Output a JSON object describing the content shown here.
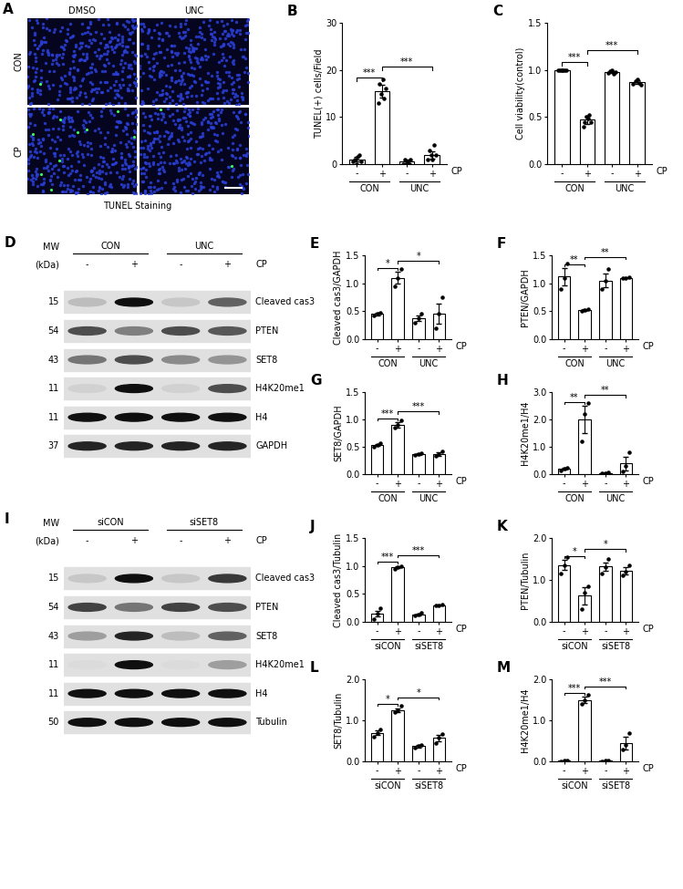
{
  "chart_data": [
    {
      "panel": "B",
      "type": "bar",
      "y_label": "TUNEL(+) cells/Field",
      "categories": [
        "-",
        "+",
        "-",
        "+"
      ],
      "groups": [
        "CON",
        "UNC"
      ],
      "group_axis_label": "CP",
      "color": "#ffffff",
      "values": [
        1,
        15.5,
        0.5,
        2
      ],
      "errors": [
        0.5,
        1.3,
        0.4,
        0.8
      ],
      "points": [
        [
          0.5,
          1,
          0,
          1.5,
          2,
          0.5
        ],
        [
          13,
          17,
          15,
          18,
          14,
          16
        ],
        [
          0,
          1,
          0,
          0.5,
          0,
          1
        ],
        [
          1,
          3,
          2,
          1,
          4,
          2
        ]
      ],
      "significance": [
        {
          "bars": [
            0,
            1
          ],
          "label": "***"
        },
        {
          "bars": [
            1,
            3
          ],
          "label": "***"
        }
      ],
      "ylim": [
        0,
        30
      ],
      "yticks": [
        0,
        10,
        20,
        30
      ]
    },
    {
      "panel": "C",
      "type": "bar",
      "y_label": "Cell viability(control)",
      "categories": [
        "-",
        "+",
        "-",
        "+"
      ],
      "groups": [
        "CON",
        "UNC"
      ],
      "group_axis_label": "CP",
      "color": "#ffffff",
      "values": [
        1.0,
        0.47,
        0.98,
        0.87
      ],
      "errors": [
        0.01,
        0.04,
        0.01,
        0.02
      ],
      "points": [
        [
          1,
          1,
          1,
          1,
          1,
          1
        ],
        [
          0.4,
          0.45,
          0.5,
          0.48,
          0.52,
          0.45
        ],
        [
          0.97,
          0.99,
          1.0,
          0.96,
          0.98
        ],
        [
          0.85,
          0.88,
          0.9,
          0.86,
          0.84
        ]
      ],
      "significance": [
        {
          "bars": [
            0,
            1
          ],
          "label": "***"
        },
        {
          "bars": [
            1,
            3
          ],
          "label": "***"
        }
      ],
      "ylim": [
        0,
        1.5
      ],
      "yticks": [
        {
          "value": 0,
          "label": "0.0"
        },
        {
          "value": 0.5,
          "label": "0.5"
        },
        {
          "value": 1,
          "label": "1.0"
        },
        {
          "value": 1.5,
          "label": "1.5"
        }
      ]
    },
    {
      "panel": "E",
      "type": "bar",
      "y_label": "Cleaved cas3/GAPDH",
      "categories": [
        "-",
        "+",
        "-",
        "+"
      ],
      "groups": [
        "CON",
        "UNC"
      ],
      "group_axis_label": "CP",
      "color": "#ffffff",
      "values": [
        0.45,
        1.1,
        0.38,
        0.45
      ],
      "errors": [
        0.03,
        0.1,
        0.05,
        0.18
      ],
      "points": [
        [
          0.42,
          0.45,
          0.48
        ],
        [
          0.95,
          1.1,
          1.25
        ],
        [
          0.3,
          0.38,
          0.45
        ],
        [
          0.2,
          0.45,
          0.75
        ]
      ],
      "significance": [
        {
          "bars": [
            0,
            1
          ],
          "label": "*"
        },
        {
          "bars": [
            1,
            3
          ],
          "label": "*"
        }
      ],
      "ylim": [
        0,
        1.5
      ],
      "yticks": [
        {
          "value": 0,
          "label": "0.0"
        },
        {
          "value": 0.5,
          "label": "0.5"
        },
        {
          "value": 1,
          "label": "1.0"
        },
        {
          "value": 1.5,
          "label": "1.5"
        }
      ]
    },
    {
      "panel": "F",
      "type": "bar",
      "y_label": "PTEN/GAPDH",
      "categories": [
        "-",
        "+",
        "-",
        "+"
      ],
      "groups": [
        "CON",
        "UNC"
      ],
      "group_axis_label": "CP",
      "color": "#ffffff",
      "values": [
        1.12,
        0.52,
        1.05,
        1.1
      ],
      "errors": [
        0.15,
        0.02,
        0.12,
        0.01
      ],
      "points": [
        [
          0.9,
          1.1,
          1.35
        ],
        [
          0.5,
          0.52,
          0.54
        ],
        [
          0.9,
          1.05,
          1.25
        ],
        [
          1.1,
          1.1,
          1.11
        ]
      ],
      "significance": [
        {
          "bars": [
            0,
            1
          ],
          "label": "**"
        },
        {
          "bars": [
            1,
            3
          ],
          "label": "**"
        }
      ],
      "ylim": [
        0,
        1.5
      ],
      "yticks": [
        {
          "value": 0,
          "label": "0.0"
        },
        {
          "value": 0.5,
          "label": "0.5"
        },
        {
          "value": 1,
          "label": "1.0"
        },
        {
          "value": 1.5,
          "label": "1.5"
        }
      ]
    },
    {
      "panel": "G",
      "type": "bar",
      "y_label": "SET8/GAPDH",
      "categories": [
        "-",
        "+",
        "-",
        "+"
      ],
      "groups": [
        "CON",
        "UNC"
      ],
      "group_axis_label": "CP",
      "color": "#ffffff",
      "values": [
        0.53,
        0.9,
        0.37,
        0.37
      ],
      "errors": [
        0.02,
        0.05,
        0.02,
        0.03
      ],
      "points": [
        [
          0.5,
          0.53,
          0.56
        ],
        [
          0.85,
          0.9,
          0.98
        ],
        [
          0.35,
          0.37,
          0.39
        ],
        [
          0.33,
          0.37,
          0.41
        ]
      ],
      "significance": [
        {
          "bars": [
            0,
            1
          ],
          "label": "***"
        },
        {
          "bars": [
            1,
            3
          ],
          "label": "***"
        }
      ],
      "ylim": [
        0,
        1.5
      ],
      "yticks": [
        {
          "value": 0,
          "label": "0.0"
        },
        {
          "value": 0.5,
          "label": "0.5"
        },
        {
          "value": 1,
          "label": "1.0"
        },
        {
          "value": 1.5,
          "label": "1.5"
        }
      ]
    },
    {
      "panel": "H",
      "type": "bar",
      "y_label": "H4K20me1/H4",
      "categories": [
        "-",
        "+",
        "-",
        "+"
      ],
      "groups": [
        "CON",
        "UNC"
      ],
      "group_axis_label": "CP",
      "color": "#ffffff",
      "values": [
        0.2,
        2.0,
        0.05,
        0.4
      ],
      "errors": [
        0.03,
        0.5,
        0.03,
        0.25
      ],
      "points": [
        [
          0.15,
          0.2,
          0.22
        ],
        [
          1.2,
          2.2,
          2.6
        ],
        [
          0.02,
          0.05,
          0.08
        ],
        [
          0.1,
          0.3,
          0.8
        ]
      ],
      "significance": [
        {
          "bars": [
            0,
            1
          ],
          "label": "**"
        },
        {
          "bars": [
            1,
            3
          ],
          "label": "**"
        }
      ],
      "ylim": [
        0,
        3
      ],
      "yticks": [
        {
          "value": 0,
          "label": "0.0"
        },
        {
          "value": 1,
          "label": "1.0"
        },
        {
          "value": 2,
          "label": "2.0"
        },
        {
          "value": 3,
          "label": "3.0"
        }
      ]
    },
    {
      "panel": "J",
      "type": "bar",
      "y_label": "Cleaved cas3/Tubulin",
      "categories": [
        "-",
        "+",
        "-",
        "+"
      ],
      "groups": [
        "siCON",
        "siSET8"
      ],
      "group_axis_label": "CP",
      "color": "#ffffff",
      "values": [
        0.15,
        0.98,
        0.13,
        0.3
      ],
      "errors": [
        0.05,
        0.02,
        0.02,
        0.01
      ],
      "points": [
        [
          0.05,
          0.15,
          0.25
        ],
        [
          0.95,
          0.98,
          1.0
        ],
        [
          0.11,
          0.13,
          0.16
        ],
        [
          0.29,
          0.3,
          0.31
        ]
      ],
      "significance": [
        {
          "bars": [
            0,
            1
          ],
          "label": "***"
        },
        {
          "bars": [
            1,
            3
          ],
          "label": "***"
        }
      ],
      "ylim": [
        0,
        1.5
      ],
      "yticks": [
        {
          "value": 0,
          "label": "0.0"
        },
        {
          "value": 0.5,
          "label": "0.5"
        },
        {
          "value": 1,
          "label": "1.0"
        },
        {
          "value": 1.5,
          "label": "1.5"
        }
      ]
    },
    {
      "panel": "K",
      "type": "bar",
      "y_label": "PTEN/Tubulin",
      "categories": [
        "-",
        "+",
        "-",
        "+"
      ],
      "groups": [
        "siCON",
        "siSET8"
      ],
      "group_axis_label": "CP",
      "color": "#ffffff",
      "values": [
        1.35,
        0.62,
        1.32,
        1.22
      ],
      "errors": [
        0.12,
        0.2,
        0.1,
        0.08
      ],
      "points": [
        [
          1.15,
          1.35,
          1.55
        ],
        [
          0.3,
          0.7,
          0.85
        ],
        [
          1.15,
          1.3,
          1.5
        ],
        [
          1.1,
          1.2,
          1.35
        ]
      ],
      "significance": [
        {
          "bars": [
            0,
            1
          ],
          "label": "*"
        },
        {
          "bars": [
            1,
            3
          ],
          "label": "*"
        }
      ],
      "ylim": [
        0,
        2
      ],
      "yticks": [
        {
          "value": 0,
          "label": "0.0"
        },
        {
          "value": 1,
          "label": "1.0"
        },
        {
          "value": 2,
          "label": "2.0"
        }
      ]
    },
    {
      "panel": "L",
      "type": "bar",
      "y_label": "SET8/Tubulin",
      "categories": [
        "-",
        "+",
        "-",
        "+"
      ],
      "groups": [
        "siCON",
        "siSET8"
      ],
      "group_axis_label": "CP",
      "color": "#ffffff",
      "values": [
        0.7,
        1.25,
        0.37,
        0.57
      ],
      "errors": [
        0.05,
        0.05,
        0.03,
        0.07
      ],
      "points": [
        [
          0.6,
          0.7,
          0.78
        ],
        [
          1.2,
          1.25,
          1.35
        ],
        [
          0.33,
          0.37,
          0.41
        ],
        [
          0.45,
          0.58,
          0.67
        ]
      ],
      "significance": [
        {
          "bars": [
            0,
            1
          ],
          "label": "*"
        },
        {
          "bars": [
            1,
            3
          ],
          "label": "*"
        }
      ],
      "ylim": [
        0,
        2
      ],
      "yticks": [
        {
          "value": 0,
          "label": "0.0"
        },
        {
          "value": 1,
          "label": "1.0"
        },
        {
          "value": 2,
          "label": "2.0"
        }
      ]
    },
    {
      "panel": "M",
      "type": "bar",
      "y_label": "H4K20me1/H4",
      "categories": [
        "-",
        "+",
        "-",
        "+"
      ],
      "groups": [
        "siCON",
        "siSET8"
      ],
      "group_axis_label": "CP",
      "color": "#ffffff",
      "values": [
        0.02,
        1.5,
        0.02,
        0.45
      ],
      "errors": [
        0.01,
        0.07,
        0.01,
        0.15
      ],
      "points": [
        [
          0.01,
          0.02,
          0.03
        ],
        [
          1.4,
          1.5,
          1.62
        ],
        [
          0.01,
          0.02,
          0.03
        ],
        [
          0.3,
          0.4,
          0.7
        ]
      ],
      "significance": [
        {
          "bars": [
            0,
            1
          ],
          "label": "***"
        },
        {
          "bars": [
            1,
            3
          ],
          "label": "***"
        }
      ],
      "ylim": [
        0,
        2
      ],
      "yticks": [
        {
          "value": 0,
          "label": "0.0"
        },
        {
          "value": 1,
          "label": "1.0"
        },
        {
          "value": 2,
          "label": "2.0"
        }
      ]
    }
  ],
  "images": {
    "panel": "A",
    "columns": [
      "DMSO",
      "UNC"
    ],
    "rows": [
      "CON",
      "CP"
    ],
    "caption": "TUNEL Staining",
    "positive_cells": [
      [
        1,
        0
      ],
      [
        9,
        2
      ]
    ]
  },
  "blots": [
    {
      "panel": "D",
      "mw_header": [
        "MW",
        "(kDa)"
      ],
      "groups": [
        "CON",
        "UNC"
      ],
      "lanes": [
        "-",
        "+",
        "-",
        "+"
      ],
      "treatment": "CP",
      "rows": [
        {
          "mw": 15,
          "label": "Cleaved cas3",
          "bands": [
            0.15,
            1.0,
            0.1,
            0.6
          ]
        },
        {
          "mw": 54,
          "label": "PTEN",
          "bands": [
            0.7,
            0.45,
            0.7,
            0.65
          ]
        },
        {
          "mw": 43,
          "label": "SET8",
          "bands": [
            0.5,
            0.7,
            0.4,
            0.35
          ]
        },
        {
          "mw": 11,
          "label": "H4K20me1",
          "bands": [
            0.05,
            1.0,
            0.05,
            0.7
          ]
        },
        {
          "mw": 11,
          "label": "H4",
          "bands": [
            1.0,
            1.0,
            1.0,
            1.0
          ]
        },
        {
          "mw": 37,
          "label": "GAPDH",
          "bands": [
            0.9,
            0.9,
            0.9,
            0.9
          ]
        }
      ]
    },
    {
      "panel": "I",
      "mw_header": [
        "MW",
        "(kDa)"
      ],
      "groups": [
        "siCON",
        "siSET8"
      ],
      "lanes": [
        "-",
        "+",
        "-",
        "+"
      ],
      "treatment": "CP",
      "rows": [
        {
          "mw": 15,
          "label": "Cleaved cas3",
          "bands": [
            0.1,
            1.0,
            0.1,
            0.8
          ]
        },
        {
          "mw": 54,
          "label": "PTEN",
          "bands": [
            0.75,
            0.5,
            0.75,
            0.7
          ]
        },
        {
          "mw": 43,
          "label": "SET8",
          "bands": [
            0.3,
            0.9,
            0.15,
            0.6
          ]
        },
        {
          "mw": 11,
          "label": "H4K20me1",
          "bands": [
            0.0,
            1.0,
            0.0,
            0.3
          ]
        },
        {
          "mw": 11,
          "label": "H4",
          "bands": [
            1.0,
            1.0,
            1.0,
            1.0
          ]
        },
        {
          "mw": 50,
          "label": "Tubulin",
          "bands": [
            1.0,
            1.0,
            1.0,
            1.0
          ]
        }
      ]
    }
  ]
}
